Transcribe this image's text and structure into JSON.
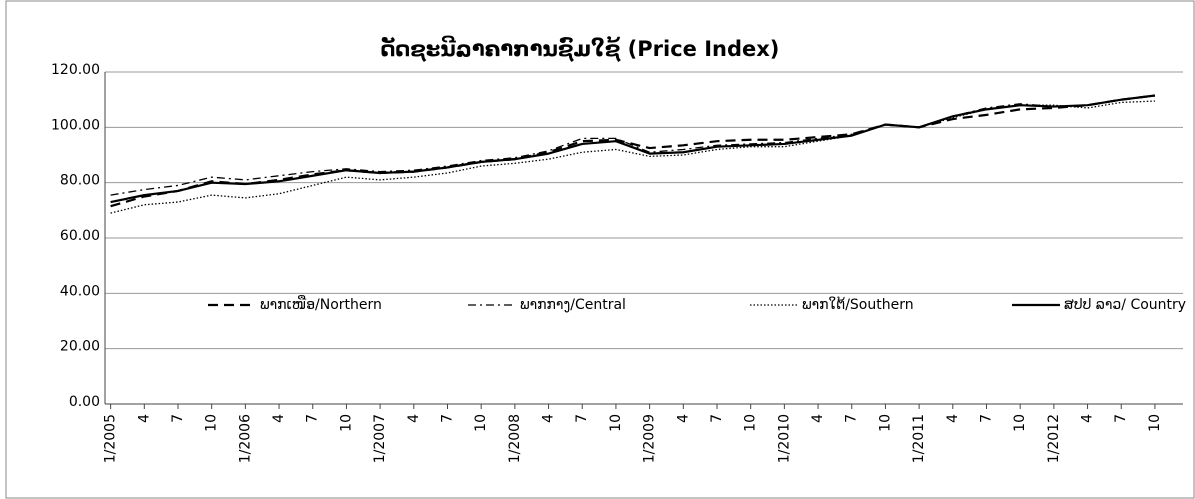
{
  "chart_data": {
    "type": "line",
    "title": "ດັດຊະນີລາຄາການຊົມໃຊ້ (Price Index)",
    "categories": [
      "1/2005",
      "4",
      "7",
      "10",
      "1/2006",
      "4",
      "7",
      "10",
      "1/2007",
      "4",
      "7",
      "10",
      "1/2008",
      "4",
      "7",
      "10",
      "1/2009",
      "4",
      "7",
      "10",
      "1/2010",
      "4",
      "7",
      "10",
      "1/2011",
      "4",
      "7",
      "10",
      "1/2012",
      "4",
      "7",
      "10"
    ],
    "series": [
      {
        "name": "ພາກເໜືອ/Northern",
        "color": "#000000",
        "dash": "10,6",
        "width": 2.2,
        "values": [
          71.5,
          75,
          77,
          80.5,
          79.5,
          81,
          83,
          84.5,
          83.5,
          84,
          85.5,
          87.5,
          88.5,
          91,
          95,
          95.5,
          92.5,
          93.5,
          95,
          95.5,
          95.5,
          96.5,
          97.5,
          101,
          100,
          103,
          104.5,
          106.5,
          107,
          108,
          110,
          111.5
        ]
      },
      {
        "name": "ພາກກາງ/Central",
        "color": "#000000",
        "dash": "8,4,2,4",
        "width": 1.3,
        "values": [
          75.5,
          77.5,
          79,
          82,
          81,
          82.5,
          84,
          85,
          84,
          84.5,
          86,
          88,
          89,
          91.5,
          96,
          96,
          91,
          92,
          93.5,
          94,
          94.5,
          96,
          97.5,
          101,
          100,
          104,
          107,
          108.5,
          107.5,
          108,
          110,
          111.5
        ]
      },
      {
        "name": "ພາກໃຕ້/Southern",
        "color": "#000000",
        "dash": "1.5,2",
        "width": 1.3,
        "values": [
          69,
          72,
          73,
          75.5,
          74.5,
          76,
          79,
          82,
          81,
          82,
          83.5,
          86,
          87,
          88.5,
          91,
          92,
          89.5,
          90,
          92,
          93,
          93,
          95,
          97,
          101,
          100,
          103.5,
          106.5,
          108,
          108,
          107,
          109,
          109.5
        ]
      },
      {
        "name": "ສປປ ລາວ/ Country",
        "color": "#000000",
        "dash": "",
        "width": 2.2,
        "values": [
          73,
          75.5,
          77,
          80,
          79.5,
          80.5,
          82.5,
          84.5,
          83.5,
          84,
          85.5,
          87.5,
          88.5,
          90.5,
          94,
          95,
          90.5,
          91,
          93,
          93.5,
          94,
          95.5,
          97,
          101,
          100,
          104,
          106.5,
          108,
          107.5,
          108,
          110,
          111.5
        ]
      }
    ],
    "ylim": [
      0,
      120
    ],
    "yticks": [
      {
        "value": 0,
        "label": "0.00"
      },
      {
        "value": 20,
        "label": "20.00"
      },
      {
        "value": 40,
        "label": "40.00"
      },
      {
        "value": 60,
        "label": "60.00"
      },
      {
        "value": 80,
        "label": "80.00"
      },
      {
        "value": 100,
        "label": "100.00"
      },
      {
        "value": 120,
        "label": "120.00"
      }
    ],
    "grid": true,
    "legend": "center"
  }
}
